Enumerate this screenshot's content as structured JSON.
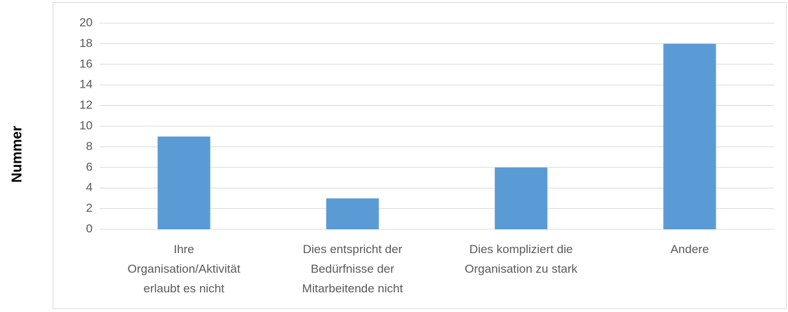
{
  "chart_data": {
    "type": "bar",
    "y_label": "Nummer",
    "categories": [
      "Ihre\nOrganisation/Aktivität\nerlaubt es nicht",
      "Dies entspricht der\nBedürfnisse der\nMitarbeitende nicht",
      "Dies kompliziert die\nOrganisation zu stark",
      "Andere"
    ],
    "values": [
      9,
      3,
      6,
      18
    ],
    "color": "#5b9bd5",
    "ylim": [
      0,
      20
    ],
    "yticks": [
      0,
      2,
      4,
      6,
      8,
      10,
      12,
      14,
      16,
      18,
      20
    ],
    "grid": true
  }
}
